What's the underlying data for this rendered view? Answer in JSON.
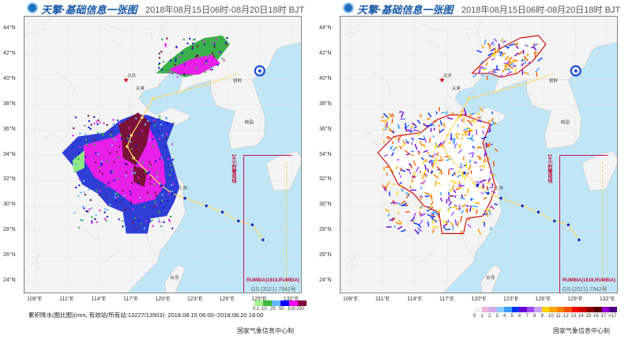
{
  "left_panel": {
    "brand": "天擎·基础信息一张图",
    "period": "2018年08月15日06时-08月20日18时 BJT",
    "lat_ticks": [
      "44°N",
      "42°N",
      "40°N",
      "38°N",
      "36°N",
      "34°N",
      "32°N",
      "30°N",
      "28°N",
      "26°N",
      "24°N"
    ],
    "lon_ticks": [
      "108°E",
      "111°E",
      "114°E",
      "117°E",
      "120°E",
      "123°E",
      "126°E",
      "129°E",
      "132°E"
    ],
    "caption": "累积降水(图比图)(mm, 有效站/所有站:13227/13503): 2018.08.15 06:00~2018.08.20 18:00",
    "credit": "国家气象信息中心制",
    "storm_label": "RUMBIA(1818,RUMBIA)",
    "gs_label": "GS (2021) 7942号",
    "warning_line": "24小时警戒线",
    "legend_labels": [
      "0.1",
      "10",
      "25",
      "50",
      "100",
      "250"
    ],
    "legend_colors": [
      "#a6f28f",
      "#3dba3d",
      "#61b8ff",
      "#0000ff",
      "#fa00fa",
      "#800040"
    ]
  },
  "right_panel": {
    "brand": "天擎·基础信息一张图",
    "period": "2018年08月15日06时-08月20日18时 BJT",
    "lat_ticks": [
      "44°N",
      "42°N",
      "40°N",
      "38°N",
      "36°N",
      "34°N",
      "32°N",
      "30°N",
      "28°N",
      "26°N",
      "24°N"
    ],
    "lon_ticks": [
      "108°E",
      "111°E",
      "114°E",
      "117°E",
      "120°E",
      "123°E",
      "126°E",
      "129°E",
      "132°E"
    ],
    "credit": "国家气象信息中心制",
    "storm_label": "RUMBIA(1818,RUMBIA)",
    "gs_label": "GS (2021) 7942号",
    "warning_line": "24小时警戒线",
    "legend_labels": [
      "0",
      "1",
      "2",
      "3",
      "4",
      "5",
      "6",
      "7",
      "8",
      "9",
      "10",
      "11",
      "12",
      "13",
      "14",
      "15",
      "16",
      "17",
      ">17"
    ],
    "legend_colors": [
      "#f2f2f2",
      "#f0b4e0",
      "#d2aaf0",
      "#8ecfff",
      "#3c9dff",
      "#0033ff",
      "#6a00d8",
      "#9d4cff",
      "#c8a0ff",
      "#ffd400",
      "#ffa500",
      "#ff7f00",
      "#ff5000",
      "#ff0000",
      "#c80000",
      "#8b0000",
      "#5a0000",
      "#9400d3",
      "#4b0082"
    ]
  },
  "map_places": [
    "北京",
    "天津",
    "上海",
    "朝鲜",
    "韩国",
    "台湾"
  ],
  "colors": {
    "sea": "#bfe6f7",
    "land": "#f4f4f4",
    "border": "#c8c8c8",
    "track": "#ffd966",
    "boundary": "#d01010"
  }
}
